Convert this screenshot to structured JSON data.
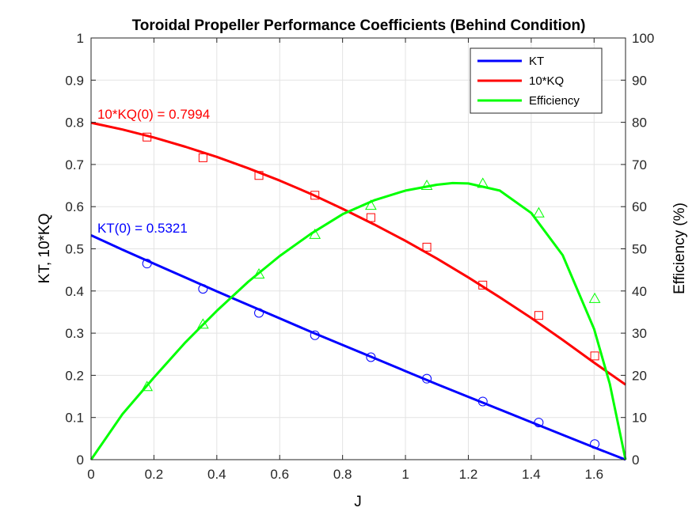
{
  "chart_data": {
    "type": "line",
    "title": "Toroidal Propeller Performance Coefficients (Behind Condition)",
    "xlabel": "J",
    "ylabel": "KT, 10*KQ",
    "y2label": "Efficiency (%)",
    "xlim": [
      0,
      1.7
    ],
    "ylim": [
      0,
      1
    ],
    "y2lim": [
      0,
      100
    ],
    "xticks": [
      "0",
      "0.2",
      "0.4",
      "0.6",
      "0.8",
      "1",
      "1.2",
      "1.4",
      "1.6"
    ],
    "yticks": [
      "0",
      "0.1",
      "0.2",
      "0.3",
      "0.4",
      "0.5",
      "0.6",
      "0.7",
      "0.8",
      "0.9",
      "1"
    ],
    "y2ticks": [
      "0",
      "10",
      "20",
      "30",
      "40",
      "50",
      "60",
      "70",
      "80",
      "90",
      "100"
    ],
    "grid": true,
    "legend_position": "top-right",
    "colors": {
      "kt": "#0000ff",
      "kq": "#ff0000",
      "eff": "#00ff00"
    },
    "series": [
      {
        "name": "KT",
        "axis": "left",
        "color": "#0000ff",
        "fit_x": [
          0,
          0.1,
          0.2,
          0.3,
          0.4,
          0.5,
          0.6,
          0.7,
          0.8,
          0.9,
          1.0,
          1.1,
          1.2,
          1.3,
          1.4,
          1.5,
          1.6,
          1.7
        ],
        "fit_y": [
          0.532,
          0.498,
          0.465,
          0.432,
          0.399,
          0.367,
          0.335,
          0.303,
          0.272,
          0.241,
          0.21,
          0.179,
          0.149,
          0.119,
          0.089,
          0.059,
          0.029,
          0.0
        ],
        "marker": "circle",
        "points_x": [
          0.178,
          0.356,
          0.534,
          0.712,
          0.89,
          1.068,
          1.246,
          1.424,
          1.602
        ],
        "points_y": [
          0.465,
          0.405,
          0.348,
          0.295,
          0.243,
          0.192,
          0.138,
          0.088,
          0.037
        ]
      },
      {
        "name": "10*KQ",
        "axis": "left",
        "color": "#ff0000",
        "fit_x": [
          0,
          0.1,
          0.2,
          0.3,
          0.4,
          0.5,
          0.6,
          0.7,
          0.8,
          0.9,
          1.0,
          1.1,
          1.2,
          1.3,
          1.4,
          1.5,
          1.6,
          1.7
        ],
        "fit_y": [
          0.799,
          0.783,
          0.764,
          0.742,
          0.718,
          0.691,
          0.662,
          0.63,
          0.595,
          0.558,
          0.519,
          0.477,
          0.432,
          0.385,
          0.336,
          0.284,
          0.23,
          0.178
        ],
        "marker": "square",
        "points_x": [
          0.178,
          0.356,
          0.534,
          0.712,
          0.89,
          1.068,
          1.246,
          1.424,
          1.602
        ],
        "points_y": [
          0.765,
          0.716,
          0.674,
          0.627,
          0.574,
          0.504,
          0.414,
          0.342,
          0.246
        ]
      },
      {
        "name": "Efficiency",
        "axis": "right",
        "color": "#00ff00",
        "fit_x": [
          0,
          0.1,
          0.2,
          0.3,
          0.4,
          0.5,
          0.6,
          0.7,
          0.8,
          0.9,
          1.0,
          1.1,
          1.15,
          1.2,
          1.3,
          1.4,
          1.5,
          1.6,
          1.65,
          1.7
        ],
        "fit_y": [
          0,
          10.8,
          19.5,
          27.8,
          35.3,
          42.2,
          48.3,
          53.6,
          58.2,
          61.5,
          63.8,
          65.2,
          65.6,
          65.5,
          63.8,
          58.5,
          48.5,
          31.0,
          18.0,
          0
        ],
        "marker": "triangle",
        "points_x": [
          0.178,
          0.356,
          0.534,
          0.712,
          0.89,
          1.068,
          1.246,
          1.424,
          1.602
        ],
        "points_y": [
          17.3,
          32.1,
          44.0,
          53.4,
          60.3,
          65.0,
          65.5,
          58.5,
          38.2
        ]
      }
    ],
    "annotations": [
      {
        "text": "10*KQ(0) = 0.7994",
        "x": 0.02,
        "y": 0.82,
        "color": "#ff0000"
      },
      {
        "text": "KT(0) = 0.5321",
        "x": 0.02,
        "y": 0.55,
        "color": "#0000ff"
      }
    ]
  }
}
